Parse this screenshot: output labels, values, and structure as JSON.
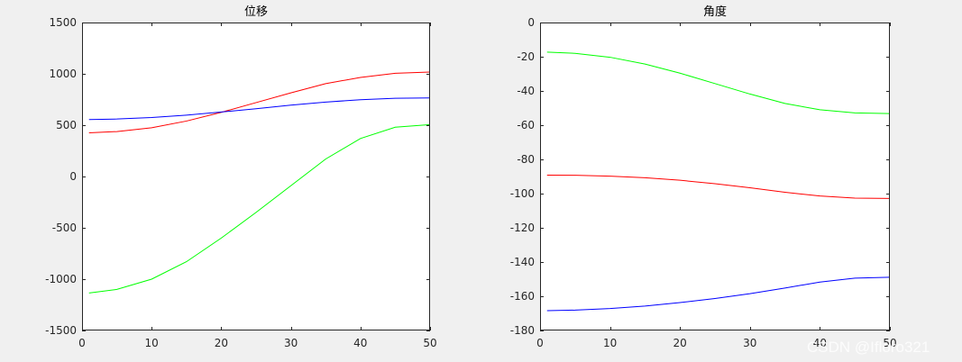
{
  "watermark": "CSDN @Ifloro321",
  "chart_data": [
    {
      "type": "line",
      "title": "位移",
      "xlim": [
        0,
        50
      ],
      "ylim": [
        -1500,
        1500
      ],
      "xticks": [
        0,
        10,
        20,
        30,
        40,
        50
      ],
      "yticks": [
        -1500,
        -1000,
        -500,
        0,
        500,
        1000,
        1500
      ],
      "xtick_labels": [
        "0",
        "10",
        "20",
        "30",
        "40",
        "50"
      ],
      "ytick_labels": [
        "-1500",
        "-1000",
        "-500",
        "0",
        "500",
        "1000",
        "1500"
      ],
      "grid": false,
      "series": [
        {
          "color": "#ff0000",
          "x": [
            1,
            5,
            10,
            15,
            20,
            25,
            30,
            35,
            40,
            45,
            50
          ],
          "y": [
            425,
            438,
            475,
            540,
            625,
            720,
            815,
            905,
            965,
            1005,
            1018
          ]
        },
        {
          "color": "#0000ff",
          "x": [
            1,
            5,
            10,
            15,
            20,
            25,
            30,
            35,
            40,
            45,
            50
          ],
          "y": [
            555,
            560,
            575,
            598,
            628,
            660,
            695,
            725,
            748,
            762,
            765
          ]
        },
        {
          "color": "#00ff00",
          "x": [
            1,
            5,
            10,
            15,
            20,
            25,
            30,
            35,
            40,
            45,
            50
          ],
          "y": [
            -1135,
            -1100,
            -1000,
            -830,
            -600,
            -350,
            -90,
            170,
            370,
            480,
            505
          ]
        }
      ]
    },
    {
      "type": "line",
      "title": "角度",
      "xlim": [
        0,
        50
      ],
      "ylim": [
        -180,
        0
      ],
      "xticks": [
        0,
        10,
        20,
        30,
        40,
        50
      ],
      "yticks": [
        -180,
        -160,
        -140,
        -120,
        -100,
        -80,
        -60,
        -40,
        -20,
        0
      ],
      "xtick_labels": [
        "0",
        "10",
        "20",
        "30",
        "40",
        "50"
      ],
      "ytick_labels": [
        "-180",
        "-160",
        "-140",
        "-120",
        "-100",
        "-80",
        "-60",
        "-40",
        "-20",
        "0"
      ],
      "grid": false,
      "series": [
        {
          "color": "#00ff00",
          "x": [
            1,
            5,
            10,
            15,
            20,
            25,
            30,
            35,
            40,
            45,
            50
          ],
          "y": [
            -17.3,
            -18,
            -20.3,
            -24.3,
            -29.6,
            -35.7,
            -41.8,
            -47.3,
            -51,
            -52.8,
            -53.2
          ]
        },
        {
          "color": "#ff0000",
          "x": [
            1,
            5,
            10,
            15,
            20,
            25,
            30,
            35,
            40,
            45,
            50
          ],
          "y": [
            -89.2,
            -89.3,
            -89.8,
            -90.7,
            -92.2,
            -94.2,
            -96.6,
            -99.2,
            -101.4,
            -102.6,
            -102.8
          ]
        },
        {
          "color": "#0000ff",
          "x": [
            1,
            5,
            10,
            15,
            20,
            25,
            30,
            35,
            40,
            45,
            50
          ],
          "y": [
            -168.4,
            -168.1,
            -167.2,
            -165.7,
            -163.7,
            -161.3,
            -158.5,
            -155.2,
            -151.7,
            -149.4,
            -148.9
          ]
        }
      ]
    }
  ]
}
